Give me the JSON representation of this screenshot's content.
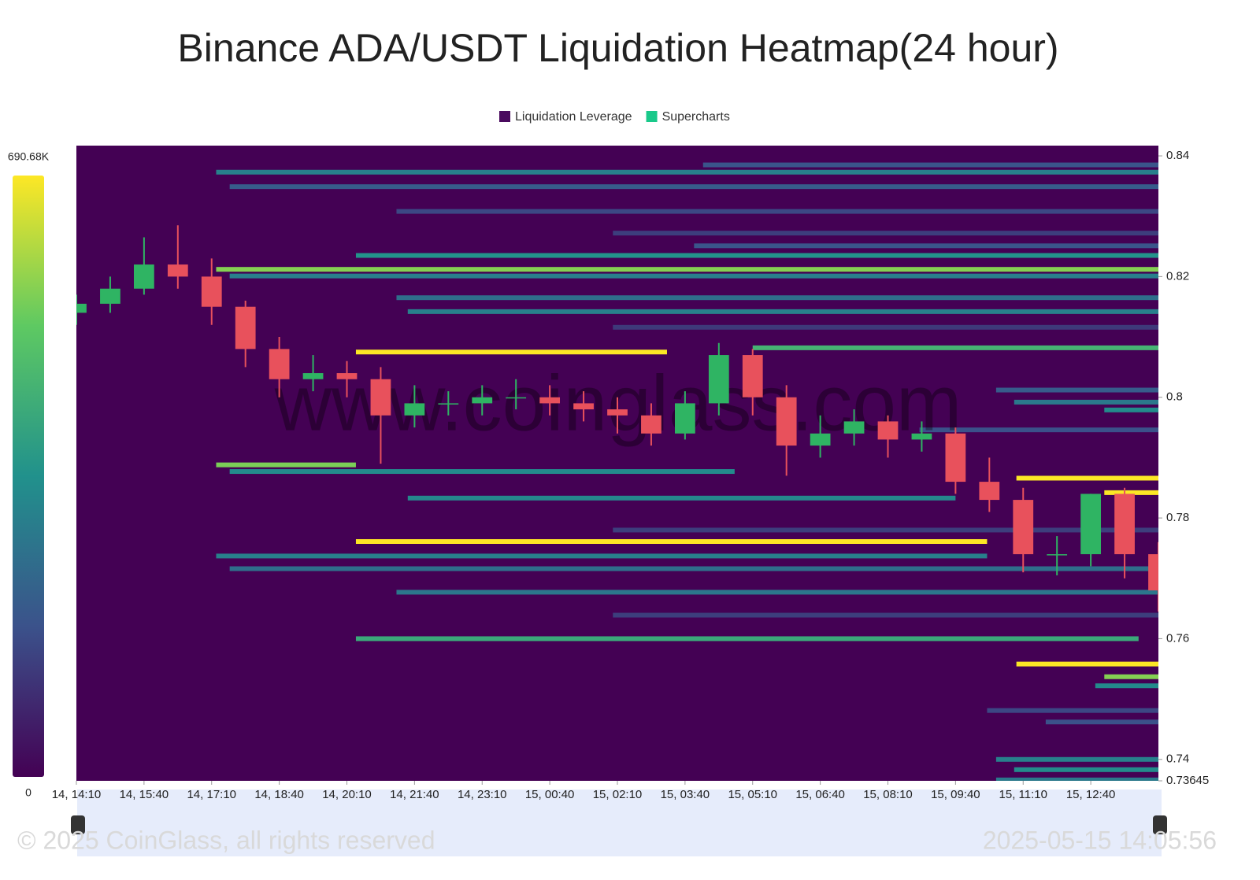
{
  "chart_data": {
    "type": "heatmap",
    "title": "Binance ADA/USDT Liquidation Heatmap(24 hour)",
    "watermark": "www.coinglass.com",
    "legend": [
      {
        "name": "Liquidation Leverage",
        "color": "#4a0a5e"
      },
      {
        "name": "Supercharts",
        "color": "#19c98a"
      }
    ],
    "xlim": [
      0,
      24
    ],
    "xticks": [
      {
        "value": 0,
        "label": "14, 14:10"
      },
      {
        "value": 1.5,
        "label": "14, 15:40"
      },
      {
        "value": 3,
        "label": "14, 17:10"
      },
      {
        "value": 4.5,
        "label": "14, 18:40"
      },
      {
        "value": 6,
        "label": "14, 20:10"
      },
      {
        "value": 7.5,
        "label": "14, 21:40"
      },
      {
        "value": 9,
        "label": "14, 23:10"
      },
      {
        "value": 10.5,
        "label": "15, 00:40"
      },
      {
        "value": 12,
        "label": "15, 02:10"
      },
      {
        "value": 13.5,
        "label": "15, 03:40"
      },
      {
        "value": 15,
        "label": "15, 05:10"
      },
      {
        "value": 16.5,
        "label": "15, 06:40"
      },
      {
        "value": 18,
        "label": "15, 08:10"
      },
      {
        "value": 19.5,
        "label": "15, 09:40"
      },
      {
        "value": 21,
        "label": "15, 11:10"
      },
      {
        "value": 22.5,
        "label": "15, 12:40"
      }
    ],
    "ylim": [
      0.73645,
      0.8417
    ],
    "yticks": [
      0.73645,
      0.74,
      0.76,
      0.78,
      0.8,
      0.82,
      0.84
    ],
    "colorscale": [
      "#440154",
      "#3b528b",
      "#21918c",
      "#5ec962",
      "#fde725"
    ],
    "colorbar": {
      "ticks": [
        {
          "value": 690680,
          "label": "690.68K"
        },
        0
      ]
    },
    "bands": [
      {
        "price": 0.8385,
        "start": 13.9,
        "value": 180000
      },
      {
        "price": 0.8373,
        "start": 3.1,
        "value": 300000
      },
      {
        "price": 0.8349,
        "start": 3.4,
        "value": 200000
      },
      {
        "price": 0.8308,
        "start": 7.1,
        "value": 150000
      },
      {
        "price": 0.8272,
        "start": 11.9,
        "value": 130000
      },
      {
        "price": 0.8251,
        "start": 13.7,
        "value": 180000
      },
      {
        "price": 0.8235,
        "start": 6.2,
        "value": 350000
      },
      {
        "price": 0.8212,
        "start": 3.1,
        "value": 560000
      },
      {
        "price": 0.8201,
        "start": 3.4,
        "value": 300000
      },
      {
        "price": 0.8165,
        "start": 7.1,
        "value": 250000
      },
      {
        "price": 0.8142,
        "start": 7.35,
        "value": 300000
      },
      {
        "price": 0.8116,
        "start": 11.9,
        "value": 120000
      },
      {
        "price": 0.8082,
        "start": 15,
        "value": 450000
      },
      {
        "price": 0.8075,
        "start": 6.2,
        "end": 13.1,
        "value": 690000
      },
      {
        "price": 0.8012,
        "start": 20.4,
        "value": 200000
      },
      {
        "price": 0.7992,
        "start": 20.8,
        "value": 280000
      },
      {
        "price": 0.7979,
        "start": 22.8,
        "value": 330000
      },
      {
        "price": 0.7946,
        "start": 18.7,
        "value": 170000
      },
      {
        "price": 0.7888,
        "start": 3.1,
        "end": 6.2,
        "value": 550000
      },
      {
        "price": 0.7877,
        "start": 3.4,
        "end": 14.6,
        "value": 330000
      },
      {
        "price": 0.7866,
        "start": 20.85,
        "value": 690000
      },
      {
        "price": 0.7842,
        "start": 22.8,
        "value": 690000
      },
      {
        "price": 0.7833,
        "start": 7.35,
        "end": 19.5,
        "value": 320000
      },
      {
        "price": 0.778,
        "start": 11.9,
        "value": 130000
      },
      {
        "price": 0.7761,
        "start": 6.2,
        "end": 20.2,
        "value": 690000
      },
      {
        "price": 0.7737,
        "start": 3.1,
        "end": 20.2,
        "value": 300000
      },
      {
        "price": 0.7716,
        "start": 3.4,
        "value": 250000
      },
      {
        "price": 0.7677,
        "start": 7.1,
        "value": 270000
      },
      {
        "price": 0.7639,
        "start": 11.9,
        "value": 130000
      },
      {
        "price": 0.76,
        "start": 6.2,
        "end": 23.56,
        "value": 420000
      },
      {
        "price": 0.7558,
        "start": 20.85,
        "value": 690000
      },
      {
        "price": 0.7537,
        "start": 22.8,
        "value": 560000
      },
      {
        "price": 0.7522,
        "start": 22.6,
        "value": 330000
      },
      {
        "price": 0.7481,
        "start": 20.2,
        "value": 150000
      },
      {
        "price": 0.7462,
        "start": 21.5,
        "value": 170000
      },
      {
        "price": 0.74,
        "start": 20.4,
        "value": 300000
      },
      {
        "price": 0.7383,
        "start": 20.8,
        "value": 330000
      },
      {
        "price": 0.7366,
        "start": 20.4,
        "value": 280000
      }
    ],
    "candles": {
      "up_color": "#2fb463",
      "down_color": "#e8515c",
      "x": [
        0,
        0.75,
        1.5,
        2.25,
        3,
        3.75,
        4.5,
        5.25,
        6,
        6.75,
        7.5,
        8.25,
        9,
        9.75,
        10.5,
        11.25,
        12,
        12.75,
        13.5,
        14.25,
        15,
        15.75,
        16.5,
        17.25,
        18,
        18.75,
        19.5,
        20.25,
        21,
        21.75,
        22.5,
        23.25,
        24
      ],
      "open": [
        0.814,
        0.8155,
        0.818,
        0.822,
        0.82,
        0.815,
        0.808,
        0.803,
        0.804,
        0.803,
        0.797,
        0.799,
        0.799,
        0.8,
        0.8,
        0.799,
        0.798,
        0.797,
        0.794,
        0.799,
        0.807,
        0.8,
        0.792,
        0.794,
        0.796,
        0.793,
        0.794,
        0.786,
        0.783,
        0.774,
        0.774,
        0.784,
        0.774
      ],
      "high": [
        0.817,
        0.82,
        0.8265,
        0.8285,
        0.823,
        0.816,
        0.81,
        0.807,
        0.806,
        0.805,
        0.802,
        0.801,
        0.802,
        0.803,
        0.802,
        0.801,
        0.8,
        0.799,
        0.801,
        0.809,
        0.808,
        0.802,
        0.797,
        0.798,
        0.797,
        0.796,
        0.795,
        0.79,
        0.785,
        0.777,
        0.784,
        0.785,
        0.776
      ],
      "low": [
        0.812,
        0.814,
        0.817,
        0.818,
        0.812,
        0.805,
        0.8,
        0.801,
        0.8,
        0.789,
        0.795,
        0.797,
        0.797,
        0.798,
        0.797,
        0.796,
        0.794,
        0.792,
        0.793,
        0.797,
        0.797,
        0.787,
        0.79,
        0.792,
        0.79,
        0.791,
        0.784,
        0.781,
        0.771,
        0.7705,
        0.772,
        0.77,
        0.7645
      ],
      "close": [
        0.8155,
        0.818,
        0.822,
        0.82,
        0.815,
        0.808,
        0.803,
        0.804,
        0.803,
        0.797,
        0.799,
        0.799,
        0.8,
        0.8,
        0.799,
        0.798,
        0.797,
        0.794,
        0.799,
        0.807,
        0.8,
        0.792,
        0.794,
        0.796,
        0.793,
        0.794,
        0.786,
        0.783,
        0.774,
        0.774,
        0.784,
        0.774,
        0.768
      ]
    },
    "copyright": "© 2025 CoinGlass, all rights reserved",
    "timestamp": "2025-05-15 14:05:56"
  }
}
